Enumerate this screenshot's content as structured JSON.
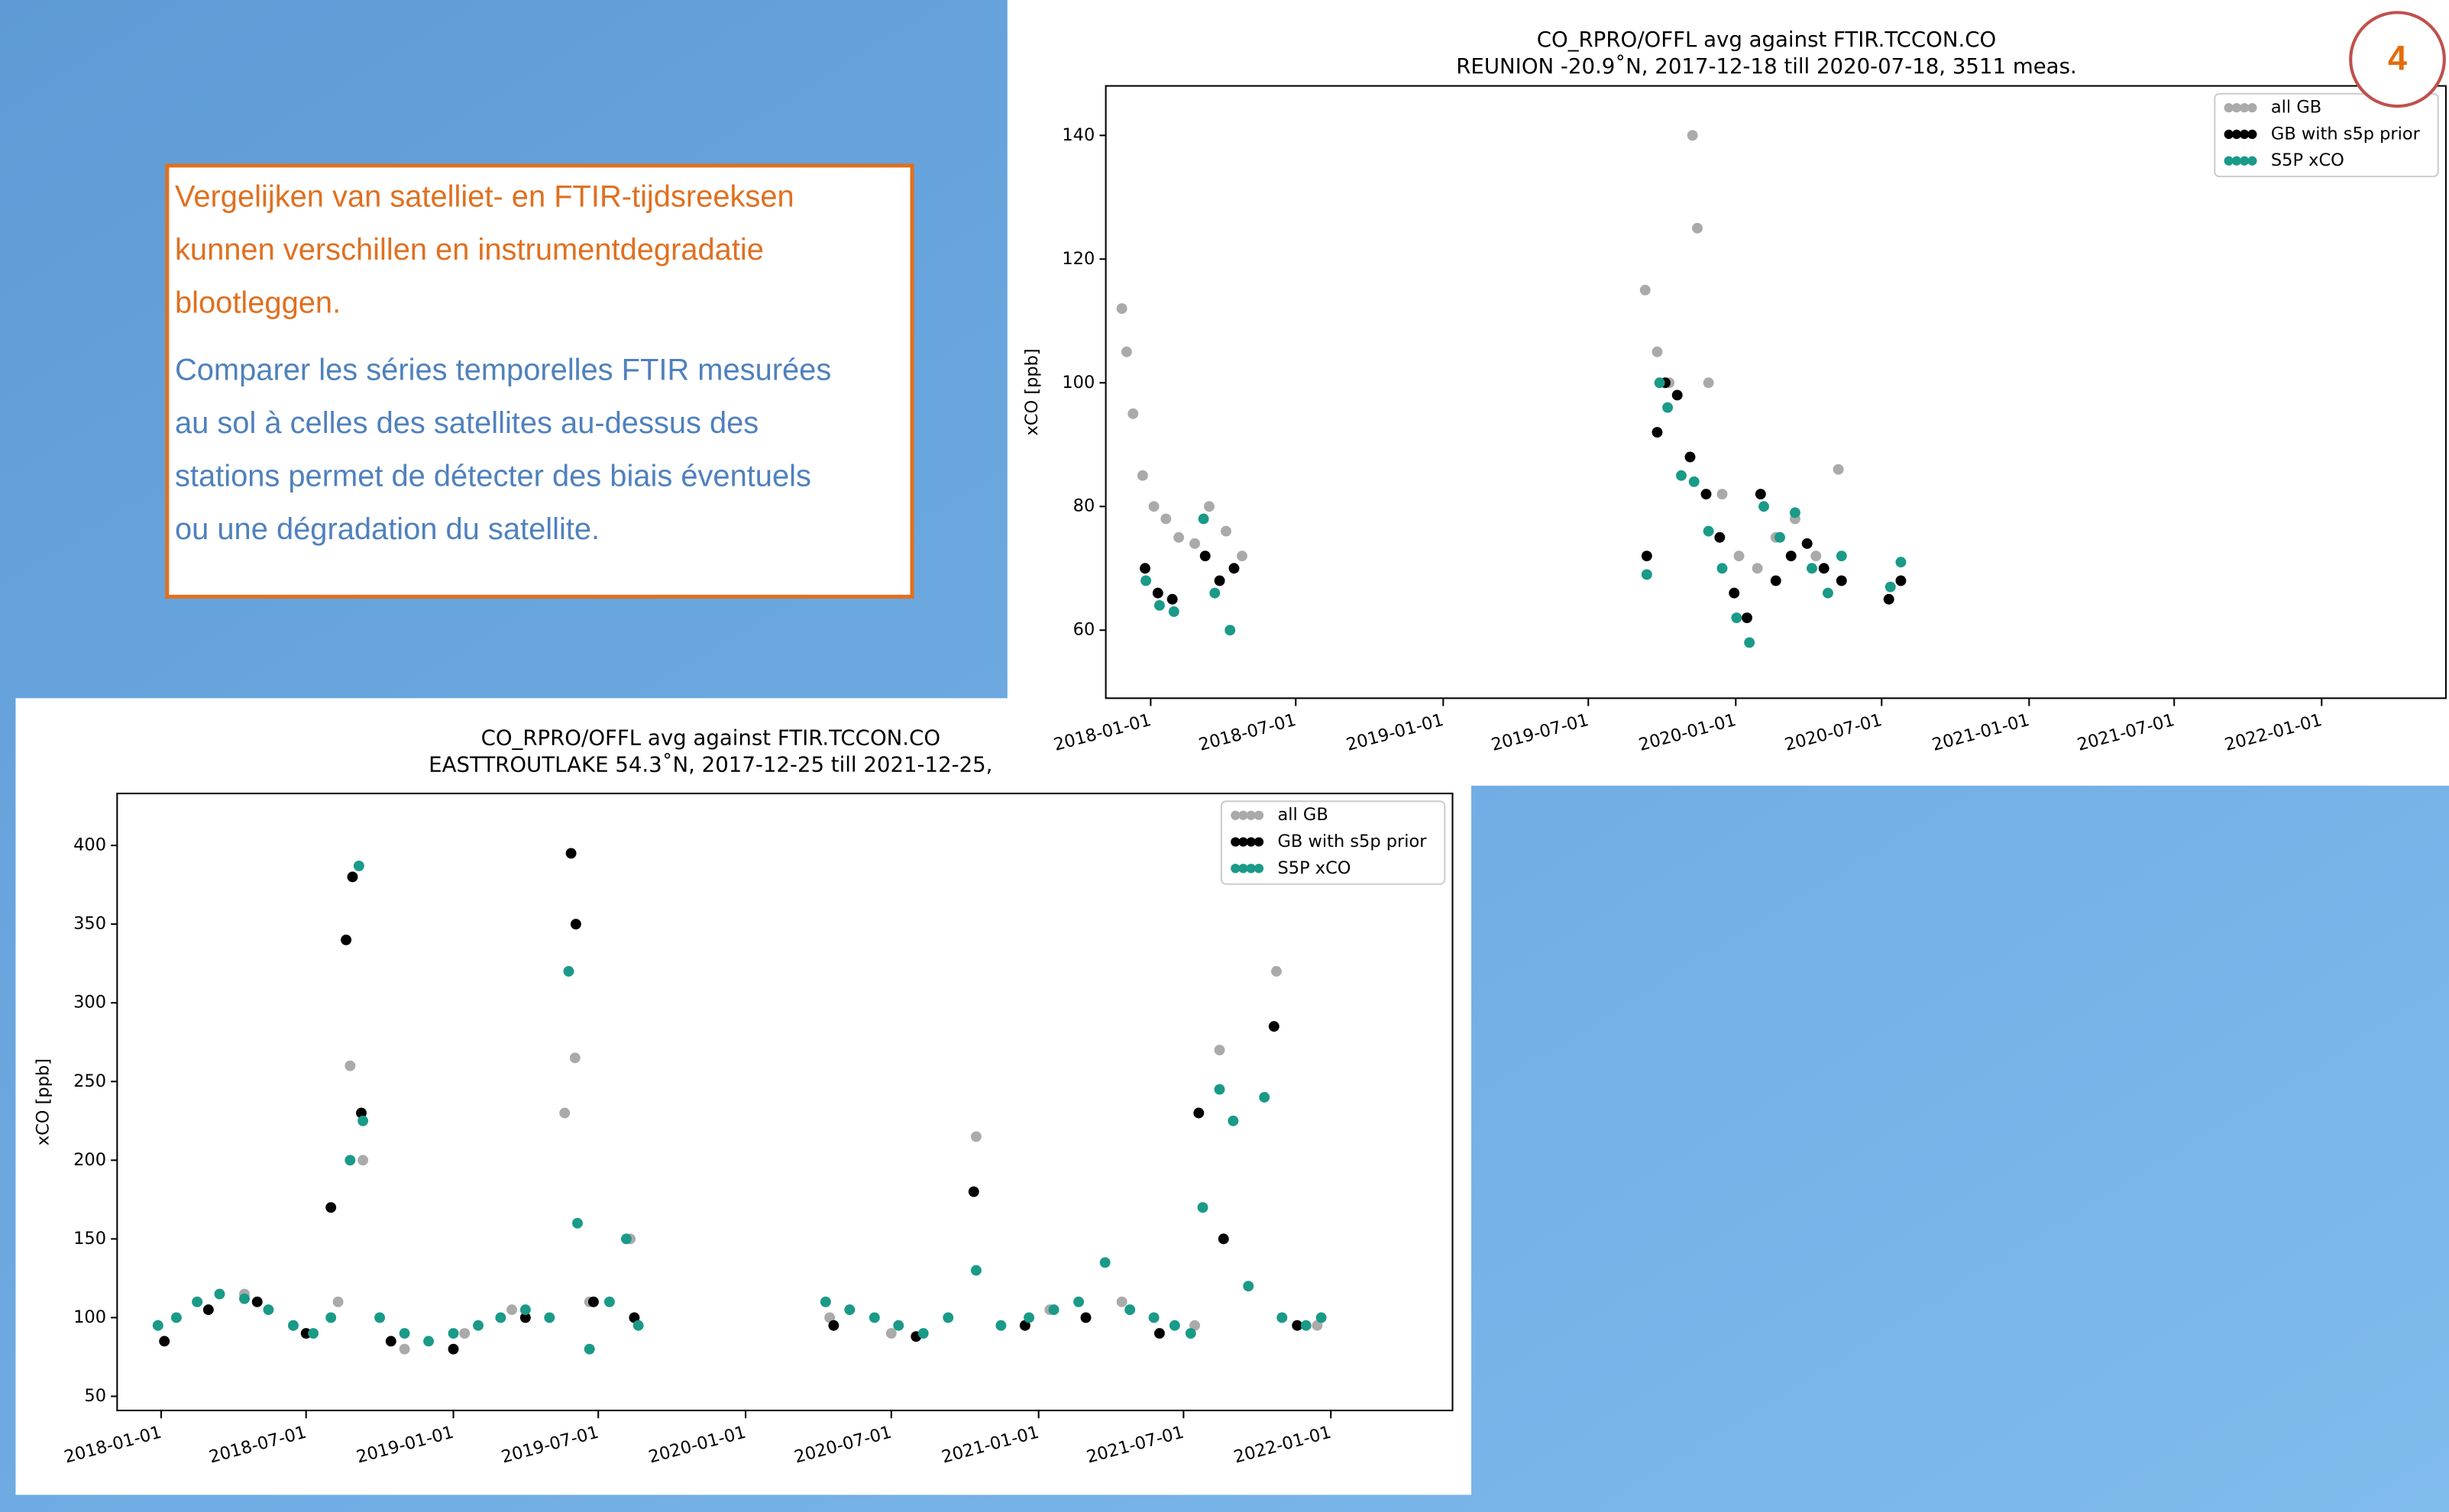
{
  "text_box": {
    "lines_nl": [
      "Vergelijken van satelliet- en FTIR-tijdsreeksen",
      "kunnen verschillen en instrumentdegradatie",
      "blootleggen."
    ],
    "lines_fr": [
      "Comparer les séries temporelles FTIR mesurées",
      "au sol à celles des satellites au-dessus des",
      "stations permet de détecter des biais éventuels",
      "ou une dégradation du satellite."
    ]
  },
  "badge": "4",
  "chart_data": [
    {
      "type": "scatter",
      "title": "CO_RPRO/OFFL avg against FTIR.TCCON.CO",
      "subtitle": "REUNION -20.9˚N, 2017-12-18 till 2020-07-18, 3511 meas.",
      "y_label": "xCO [ppb]",
      "legend": "upper right",
      "xlim": [
        "2017-11-06",
        "2022-06-05"
      ],
      "xticks": [
        "2018-01-01",
        "2018-07-01",
        "2019-01-01",
        "2019-07-01",
        "2020-01-01",
        "2020-07-01",
        "2021-01-01",
        "2021-07-01",
        "2022-01-01"
      ],
      "ylim": [
        49,
        148
      ],
      "yticks": [
        60,
        80,
        100,
        120,
        140
      ],
      "series": [
        {
          "name": "all GB",
          "color": "#aaaaaa",
          "x": [
            "2017-11-26",
            "2017-12-02",
            "2017-12-10",
            "2017-12-22",
            "2018-01-05",
            "2018-01-20",
            "2018-02-05",
            "2018-02-25",
            "2018-03-15",
            "2018-04-05",
            "2018-04-25",
            "2019-09-10",
            "2019-09-25",
            "2019-10-10",
            "2019-11-08",
            "2019-11-14",
            "2019-11-28",
            "2019-12-15",
            "2020-01-05",
            "2020-01-28",
            "2020-02-20",
            "2020-03-15",
            "2020-04-10",
            "2020-05-08"
          ],
          "values": [
            112,
            105,
            95,
            85,
            80,
            78,
            75,
            74,
            80,
            76,
            72,
            115,
            105,
            100,
            140,
            125,
            100,
            82,
            72,
            70,
            75,
            78,
            72,
            86
          ]
        },
        {
          "name": "GB with s5p prior",
          "color": "#000000",
          "x": [
            "2017-12-25",
            "2018-01-10",
            "2018-01-28",
            "2018-03-10",
            "2018-03-28",
            "2018-04-15",
            "2019-09-12",
            "2019-09-25",
            "2019-10-05",
            "2019-10-20",
            "2019-11-05",
            "2019-11-25",
            "2019-12-12",
            "2019-12-30",
            "2020-01-15",
            "2020-02-01",
            "2020-02-20",
            "2020-03-10",
            "2020-03-30",
            "2020-04-20",
            "2020-05-12",
            "2020-07-10",
            "2020-07-25"
          ],
          "values": [
            70,
            66,
            65,
            72,
            68,
            70,
            72,
            92,
            100,
            98,
            88,
            82,
            75,
            66,
            62,
            82,
            68,
            72,
            74,
            70,
            68,
            65,
            68
          ]
        },
        {
          "name": "S5P xCO",
          "color": "#1a9a88",
          "x": [
            "2017-12-26",
            "2018-01-12",
            "2018-01-30",
            "2018-03-08",
            "2018-03-22",
            "2018-04-10",
            "2019-09-12",
            "2019-09-28",
            "2019-10-08",
            "2019-10-25",
            "2019-11-10",
            "2019-11-28",
            "2019-12-15",
            "2020-01-02",
            "2020-01-18",
            "2020-02-05",
            "2020-02-25",
            "2020-03-15",
            "2020-04-05",
            "2020-04-25",
            "2020-05-12",
            "2020-07-12",
            "2020-07-25"
          ],
          "values": [
            68,
            64,
            63,
            78,
            66,
            60,
            69,
            100,
            96,
            85,
            84,
            76,
            70,
            62,
            58,
            80,
            75,
            79,
            70,
            66,
            72,
            67,
            71
          ]
        }
      ]
    },
    {
      "type": "scatter",
      "title": "CO_RPRO/OFFL avg against FTIR.TCCON.CO",
      "subtitle": "EASTTROUTLAKE 54.3˚N, 2017-12-25 till 2021-12-25,",
      "y_label": "xCO [ppb]",
      "legend": "upper right",
      "xlim": [
        "2017-11-07",
        "2022-06-02"
      ],
      "xticks": [
        "2018-01-01",
        "2018-07-01",
        "2019-01-01",
        "2019-07-01",
        "2020-01-01",
        "2020-07-01",
        "2021-01-01",
        "2021-07-01",
        "2022-01-01"
      ],
      "ylim": [
        41,
        433
      ],
      "yticks": [
        50,
        100,
        150,
        200,
        250,
        300,
        350,
        400
      ],
      "series": [
        {
          "name": "all GB",
          "color": "#aaaaaa",
          "x": [
            "2017-12-28",
            "2018-02-15",
            "2018-04-15",
            "2018-06-15",
            "2018-08-10",
            "2018-08-25",
            "2018-09-10",
            "2018-11-01",
            "2019-01-15",
            "2019-03-15",
            "2019-05-20",
            "2019-06-02",
            "2019-06-20",
            "2019-08-10",
            "2020-04-15",
            "2020-07-01",
            "2020-10-15",
            "2021-01-15",
            "2021-04-15",
            "2021-07-15",
            "2021-08-15",
            "2021-10-25",
            "2021-12-15"
          ],
          "values": [
            95,
            110,
            115,
            95,
            110,
            260,
            200,
            80,
            90,
            105,
            230,
            265,
            110,
            150,
            100,
            90,
            215,
            105,
            110,
            95,
            270,
            320,
            95
          ]
        },
        {
          "name": "GB with s5p prior",
          "color": "#000000",
          "x": [
            "2018-01-05",
            "2018-03-01",
            "2018-05-01",
            "2018-07-01",
            "2018-08-01",
            "2018-08-20",
            "2018-08-28",
            "2018-09-08",
            "2018-10-15",
            "2019-01-01",
            "2019-04-01",
            "2019-05-28",
            "2019-06-03",
            "2019-06-25",
            "2019-08-15",
            "2020-04-20",
            "2020-08-01",
            "2020-10-12",
            "2020-12-15",
            "2021-03-01",
            "2021-06-01",
            "2021-07-20",
            "2021-08-20",
            "2021-10-22",
            "2021-11-20"
          ],
          "values": [
            85,
            105,
            110,
            90,
            170,
            340,
            380,
            230,
            85,
            80,
            100,
            395,
            350,
            110,
            100,
            95,
            88,
            180,
            95,
            100,
            90,
            230,
            150,
            285,
            95
          ]
        },
        {
          "name": "S5P xCO",
          "color": "#1a9a88",
          "x": [
            "2017-12-28",
            "2018-01-20",
            "2018-02-15",
            "2018-03-15",
            "2018-04-15",
            "2018-05-15",
            "2018-06-15",
            "2018-07-10",
            "2018-08-01",
            "2018-08-25",
            "2018-09-05",
            "2018-09-10",
            "2018-10-01",
            "2018-11-01",
            "2018-12-01",
            "2019-01-01",
            "2019-02-01",
            "2019-03-01",
            "2019-04-01",
            "2019-05-01",
            "2019-05-25",
            "2019-06-05",
            "2019-06-20",
            "2019-07-15",
            "2019-08-05",
            "2019-08-20",
            "2020-04-10",
            "2020-05-10",
            "2020-06-10",
            "2020-07-10",
            "2020-08-10",
            "2020-09-10",
            "2020-10-15",
            "2020-11-15",
            "2020-12-20",
            "2021-01-20",
            "2021-02-20",
            "2021-03-25",
            "2021-04-25",
            "2021-05-25",
            "2021-06-20",
            "2021-07-10",
            "2021-07-25",
            "2021-08-15",
            "2021-09-01",
            "2021-09-20",
            "2021-10-10",
            "2021-11-01",
            "2021-12-01",
            "2021-12-20"
          ],
          "values": [
            95,
            100,
            110,
            115,
            112,
            105,
            95,
            90,
            100,
            200,
            387,
            225,
            100,
            90,
            85,
            90,
            95,
            100,
            105,
            100,
            320,
            160,
            80,
            110,
            150,
            95,
            110,
            105,
            100,
            95,
            90,
            100,
            130,
            95,
            100,
            105,
            110,
            135,
            105,
            100,
            95,
            90,
            170,
            245,
            225,
            120,
            240,
            100,
            95,
            100
          ]
        }
      ]
    }
  ]
}
